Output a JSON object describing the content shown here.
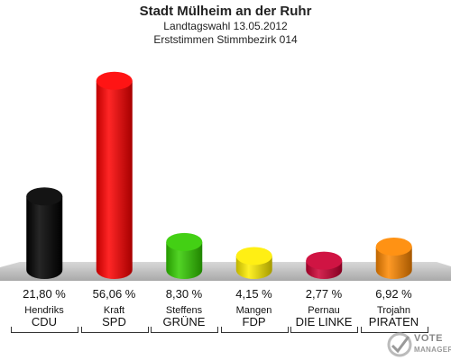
{
  "header": {
    "title": "Stadt Mülheim an der Ruhr",
    "subtitle1": "Landtagswahl 13.05.2012",
    "subtitle2": "Erststimmen Stimmbezirk 014"
  },
  "chart_data": {
    "type": "bar",
    "categories": [
      "CDU",
      "SPD",
      "GRÜNE",
      "FDP",
      "DIE LINKE",
      "PIRATEN"
    ],
    "candidates": [
      "Hendriks",
      "Kraft",
      "Steffens",
      "Mangen",
      "Pernau",
      "Trojahn"
    ],
    "values": [
      21.8,
      56.06,
      8.3,
      4.15,
      2.77,
      6.92
    ],
    "value_labels": [
      "21,80 %",
      "56,06 %",
      "8,30 %",
      "4,15 %",
      "2,77 %",
      "6,92 %"
    ],
    "colors": [
      "#000000",
      "#ff0000",
      "#33cc00",
      "#ffee00",
      "#cc0033",
      "#ff8800"
    ],
    "ylim": [
      0,
      60
    ],
    "grid": false,
    "legend": "none"
  },
  "logo": {
    "line1": "VOTE",
    "line2": "MANAGER"
  }
}
